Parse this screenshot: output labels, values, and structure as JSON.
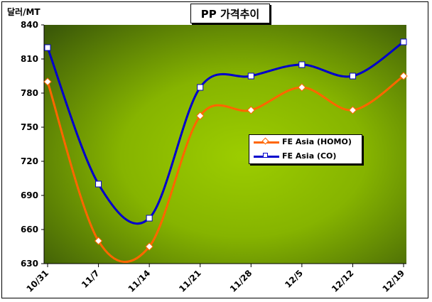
{
  "title": "PP 가격추이",
  "unit_label": "달러/MT",
  "chart_data": {
    "type": "line",
    "title": "PP 가격추이",
    "ylabel": "달러/MT",
    "xlabel": "",
    "categories": [
      "10/31",
      "11/7",
      "11/14",
      "11/21",
      "11/28",
      "12/5",
      "12/12",
      "12/19"
    ],
    "yticks": [
      630,
      660,
      690,
      720,
      750,
      780,
      810,
      840
    ],
    "ylim": [
      630,
      840
    ],
    "grid": false,
    "legend_position": "right-middle",
    "series": [
      {
        "name": "FE Asia (HOMO)",
        "values": [
          790,
          650,
          645,
          760,
          765,
          785,
          765,
          795
        ],
        "color": "#ff6600",
        "marker": "diamond"
      },
      {
        "name": "FE Asia (CO)",
        "values": [
          820,
          700,
          670,
          785,
          795,
          805,
          795,
          825
        ],
        "color": "#0000cc",
        "marker": "square"
      }
    ]
  }
}
